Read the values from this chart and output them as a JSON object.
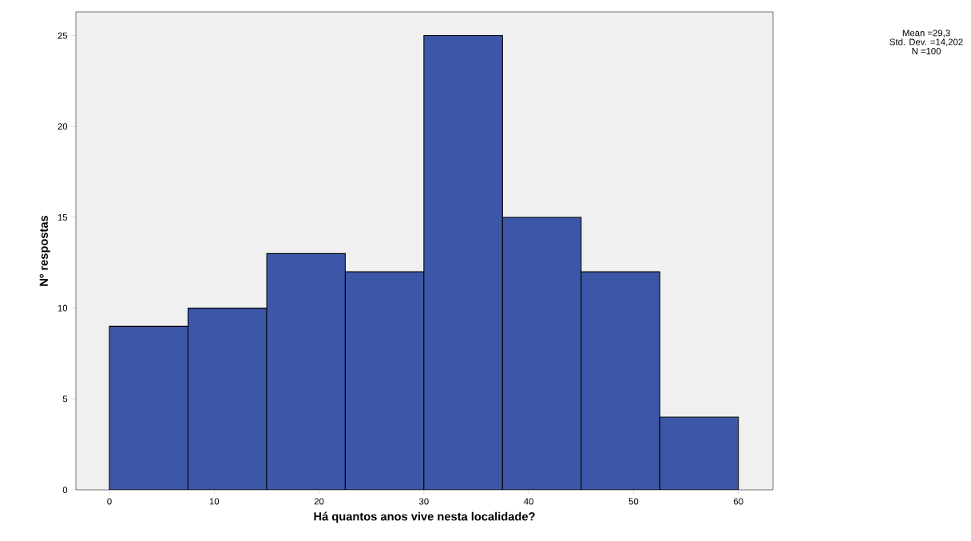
{
  "chart_data": {
    "type": "histogram",
    "xlabel": "Há quantos anos vive nesta localidade?",
    "ylabel": "Nº respostas",
    "bins": [
      0,
      7.5,
      15,
      22.5,
      30,
      37.5,
      45,
      52.5,
      60
    ],
    "values": [
      9,
      10,
      13,
      12,
      25,
      15,
      12,
      4
    ],
    "color": "#3d57a8",
    "xlim": [
      -3.2,
      63.3
    ],
    "ylim": [
      0,
      26.3
    ],
    "xticks": [
      0,
      10,
      20,
      30,
      40,
      50,
      60
    ],
    "yticks": [
      0,
      5,
      10,
      15,
      20,
      25
    ],
    "annotations": [
      "Mean =29,3",
      "Std. Dev. =14,202",
      "N =100"
    ]
  }
}
